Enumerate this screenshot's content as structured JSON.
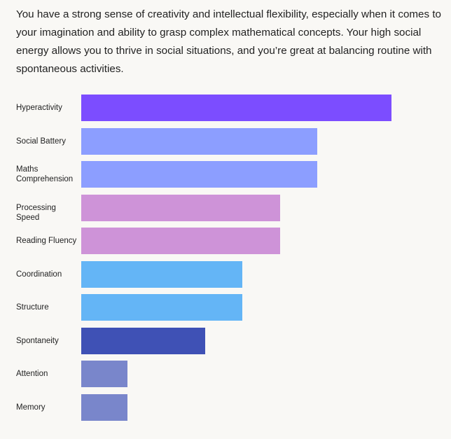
{
  "description": "You have a strong sense of creativity and intellectual flexibility, especially when it comes to your imagination and ability to grasp complex mathematical concepts. Your high social energy allows you to thrive in social situations, and you’re great at balancing routine with spontaneous activities.",
  "chart_data": {
    "type": "bar",
    "orientation": "horizontal",
    "title": "",
    "xlabel": "",
    "ylabel": "",
    "xlim": [
      0,
      100
    ],
    "grid": false,
    "categories": [
      "Hyperactivity",
      "Social Battery",
      "Maths Comprehension",
      "Processing Speed",
      "Reading Fluency",
      "Coordination",
      "Structure",
      "Spontaneity",
      "Attention",
      "Memory"
    ],
    "values": [
      100,
      76,
      76,
      64,
      64,
      52,
      52,
      40,
      15,
      15
    ],
    "colors": [
      "#7c4dff",
      "#8c9eff",
      "#8c9eff",
      "#ce93d8",
      "#ce93d8",
      "#64b5f6",
      "#64b5f6",
      "#3f51b5",
      "#7986cb",
      "#7986cb"
    ]
  }
}
